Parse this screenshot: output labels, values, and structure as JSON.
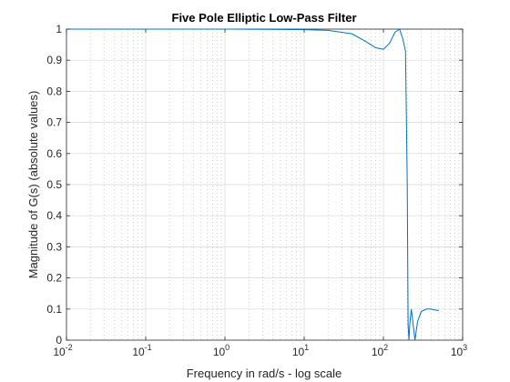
{
  "chart_data": {
    "type": "line",
    "title": "Five Pole Elliptic Low-Pass Filter",
    "xlabel": "Frequency in rad/s - log scale",
    "ylabel": "Magnitude of G(s) (absolute values)",
    "xscale": "log",
    "xlim": [
      0.01,
      1000
    ],
    "ylim": [
      0,
      1
    ],
    "grid": true,
    "x_ticks": [
      {
        "base": "10",
        "exp": "-2"
      },
      {
        "base": "10",
        "exp": "-1"
      },
      {
        "base": "10",
        "exp": "0"
      },
      {
        "base": "10",
        "exp": "1"
      },
      {
        "base": "10",
        "exp": "2"
      },
      {
        "base": "10",
        "exp": "3"
      }
    ],
    "y_ticks": [
      "0",
      "0.1",
      "0.2",
      "0.3",
      "0.4",
      "0.5",
      "0.6",
      "0.7",
      "0.8",
      "0.9",
      "1"
    ],
    "series": [
      {
        "color": "#0072bd",
        "x": [
          0.01,
          0.1,
          1,
          5,
          10,
          20,
          40,
          60,
          80,
          100,
          120,
          140,
          160,
          175,
          190,
          200,
          205,
          210,
          215,
          225,
          235,
          250,
          270,
          300,
          350,
          400,
          450,
          500
        ],
        "y": [
          1.0,
          1.0,
          1.0,
          0.999,
          0.998,
          0.996,
          0.985,
          0.96,
          0.94,
          0.935,
          0.955,
          0.99,
          1.0,
          0.97,
          0.93,
          0.5,
          0.05,
          0.0,
          0.05,
          0.1,
          0.06,
          0.0,
          0.06,
          0.092,
          0.1,
          0.1,
          0.097,
          0.095
        ]
      }
    ]
  }
}
